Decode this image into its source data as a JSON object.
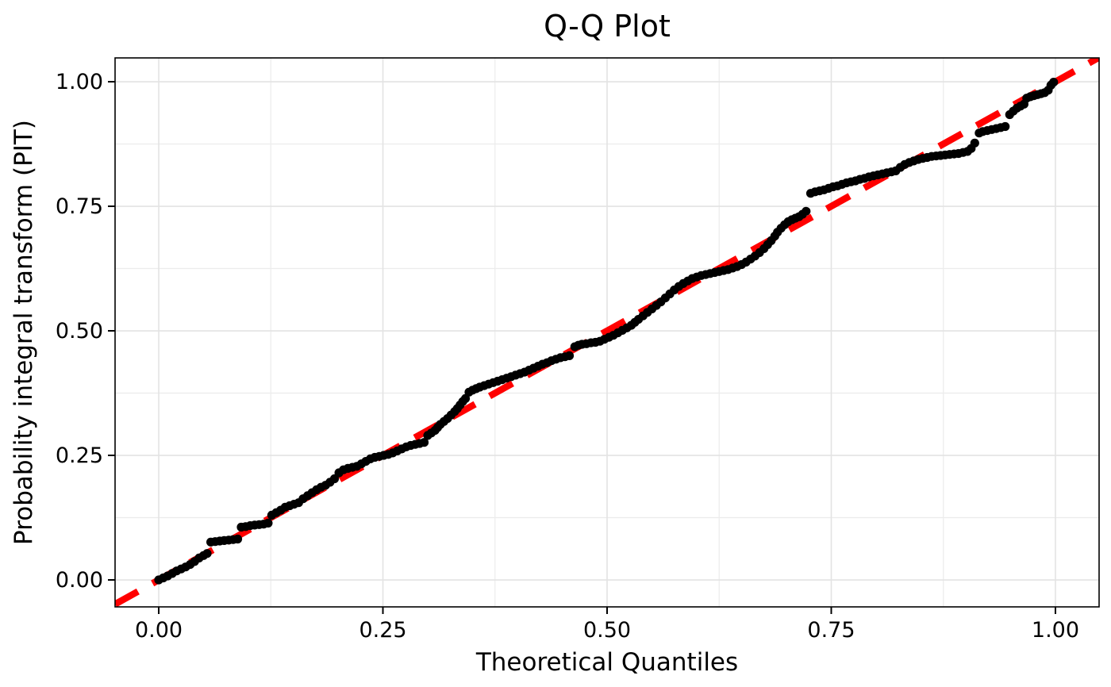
{
  "page": {
    "background": "#FFFFFF"
  },
  "chart_data": {
    "type": "scatter",
    "title": "Q-Q Plot",
    "xlabel": "Theoretical Quantiles",
    "ylabel": "Probability integral transform (PIT)",
    "xlim": [
      -0.0487,
      1.0487
    ],
    "ylim": [
      -0.0541,
      1.0478
    ],
    "x_ticks": [
      0,
      0.25,
      0.5,
      0.75,
      1.0
    ],
    "x_tick_labels": [
      "0.00",
      "0.25",
      "0.50",
      "0.75",
      "1.00"
    ],
    "y_ticks": [
      0,
      0.25,
      0.5,
      0.75,
      1.0
    ],
    "y_tick_labels": [
      "0.00",
      "0.25",
      "0.50",
      "0.75",
      "1.00"
    ],
    "grid": {
      "show": true,
      "major": [
        0,
        0.25,
        0.5,
        0.75,
        1.0
      ],
      "minor": [
        0.125,
        0.375,
        0.625,
        0.875
      ]
    },
    "legend": "none",
    "reference_line": {
      "style": "dashed",
      "slope": 1,
      "intercept": 0,
      "color": "#FF0000"
    },
    "series": [
      {
        "name": "PIT points",
        "marker": "circle",
        "color": "#000000",
        "points": [
          [
            0.0,
            0.0
          ],
          [
            0.005,
            0.004
          ],
          [
            0.01,
            0.008
          ],
          [
            0.015,
            0.013
          ],
          [
            0.02,
            0.018
          ],
          [
            0.025,
            0.022
          ],
          [
            0.03,
            0.026
          ],
          [
            0.035,
            0.031
          ],
          [
            0.04,
            0.037
          ],
          [
            0.045,
            0.044
          ],
          [
            0.05,
            0.049
          ],
          [
            0.054,
            0.053
          ],
          [
            0.058,
            0.076
          ],
          [
            0.063,
            0.077
          ],
          [
            0.068,
            0.078
          ],
          [
            0.073,
            0.079
          ],
          [
            0.078,
            0.08
          ],
          [
            0.083,
            0.081
          ],
          [
            0.088,
            0.082
          ],
          [
            0.092,
            0.106
          ],
          [
            0.097,
            0.107
          ],
          [
            0.102,
            0.109
          ],
          [
            0.107,
            0.11
          ],
          [
            0.112,
            0.111
          ],
          [
            0.117,
            0.112
          ],
          [
            0.122,
            0.114
          ],
          [
            0.126,
            0.13
          ],
          [
            0.131,
            0.135
          ],
          [
            0.136,
            0.14
          ],
          [
            0.141,
            0.146
          ],
          [
            0.146,
            0.149
          ],
          [
            0.151,
            0.152
          ],
          [
            0.156,
            0.155
          ],
          [
            0.161,
            0.163
          ],
          [
            0.166,
            0.169
          ],
          [
            0.171,
            0.175
          ],
          [
            0.176,
            0.181
          ],
          [
            0.181,
            0.186
          ],
          [
            0.186,
            0.19
          ],
          [
            0.191,
            0.196
          ],
          [
            0.196,
            0.203
          ],
          [
            0.201,
            0.215
          ],
          [
            0.206,
            0.221
          ],
          [
            0.211,
            0.224
          ],
          [
            0.216,
            0.226
          ],
          [
            0.221,
            0.228
          ],
          [
            0.226,
            0.233
          ],
          [
            0.231,
            0.238
          ],
          [
            0.236,
            0.243
          ],
          [
            0.241,
            0.246
          ],
          [
            0.246,
            0.248
          ],
          [
            0.251,
            0.25
          ],
          [
            0.256,
            0.252
          ],
          [
            0.261,
            0.255
          ],
          [
            0.266,
            0.259
          ],
          [
            0.271,
            0.263
          ],
          [
            0.276,
            0.267
          ],
          [
            0.281,
            0.27
          ],
          [
            0.286,
            0.272
          ],
          [
            0.291,
            0.274
          ],
          [
            0.296,
            0.276
          ],
          [
            0.3,
            0.29
          ],
          [
            0.304,
            0.295
          ],
          [
            0.308,
            0.3
          ],
          [
            0.311,
            0.306
          ],
          [
            0.314,
            0.312
          ],
          [
            0.318,
            0.318
          ],
          [
            0.322,
            0.324
          ],
          [
            0.326,
            0.331
          ],
          [
            0.33,
            0.338
          ],
          [
            0.333,
            0.344
          ],
          [
            0.336,
            0.351
          ],
          [
            0.339,
            0.358
          ],
          [
            0.342,
            0.364
          ],
          [
            0.346,
            0.377
          ],
          [
            0.35,
            0.381
          ],
          [
            0.354,
            0.384
          ],
          [
            0.358,
            0.387
          ],
          [
            0.363,
            0.39
          ],
          [
            0.368,
            0.393
          ],
          [
            0.373,
            0.396
          ],
          [
            0.378,
            0.399
          ],
          [
            0.383,
            0.402
          ],
          [
            0.388,
            0.405
          ],
          [
            0.393,
            0.408
          ],
          [
            0.398,
            0.411
          ],
          [
            0.403,
            0.414
          ],
          [
            0.408,
            0.417
          ],
          [
            0.413,
            0.421
          ],
          [
            0.418,
            0.425
          ],
          [
            0.423,
            0.429
          ],
          [
            0.428,
            0.433
          ],
          [
            0.433,
            0.436
          ],
          [
            0.438,
            0.44
          ],
          [
            0.443,
            0.443
          ],
          [
            0.448,
            0.446
          ],
          [
            0.453,
            0.448
          ],
          [
            0.458,
            0.45
          ],
          [
            0.464,
            0.468
          ],
          [
            0.468,
            0.471
          ],
          [
            0.472,
            0.473
          ],
          [
            0.477,
            0.474
          ],
          [
            0.482,
            0.476
          ],
          [
            0.487,
            0.477
          ],
          [
            0.492,
            0.479
          ],
          [
            0.497,
            0.483
          ],
          [
            0.502,
            0.487
          ],
          [
            0.507,
            0.491
          ],
          [
            0.512,
            0.496
          ],
          [
            0.517,
            0.501
          ],
          [
            0.522,
            0.506
          ],
          [
            0.527,
            0.511
          ],
          [
            0.531,
            0.517
          ],
          [
            0.535,
            0.523
          ],
          [
            0.54,
            0.53
          ],
          [
            0.545,
            0.537
          ],
          [
            0.55,
            0.544
          ],
          [
            0.555,
            0.551
          ],
          [
            0.56,
            0.558
          ],
          [
            0.565,
            0.566
          ],
          [
            0.57,
            0.574
          ],
          [
            0.575,
            0.582
          ],
          [
            0.58,
            0.589
          ],
          [
            0.585,
            0.595
          ],
          [
            0.59,
            0.6
          ],
          [
            0.595,
            0.605
          ],
          [
            0.6,
            0.608
          ],
          [
            0.605,
            0.611
          ],
          [
            0.61,
            0.613
          ],
          [
            0.615,
            0.615
          ],
          [
            0.62,
            0.617
          ],
          [
            0.625,
            0.619
          ],
          [
            0.63,
            0.621
          ],
          [
            0.635,
            0.623
          ],
          [
            0.64,
            0.626
          ],
          [
            0.645,
            0.629
          ],
          [
            0.65,
            0.633
          ],
          [
            0.655,
            0.638
          ],
          [
            0.66,
            0.644
          ],
          [
            0.665,
            0.65
          ],
          [
            0.67,
            0.657
          ],
          [
            0.675,
            0.665
          ],
          [
            0.679,
            0.673
          ],
          [
            0.683,
            0.681
          ],
          [
            0.687,
            0.69
          ],
          [
            0.69,
            0.698
          ],
          [
            0.694,
            0.706
          ],
          [
            0.698,
            0.713
          ],
          [
            0.702,
            0.719
          ],
          [
            0.706,
            0.723
          ],
          [
            0.71,
            0.726
          ],
          [
            0.714,
            0.729
          ],
          [
            0.718,
            0.734
          ],
          [
            0.722,
            0.74
          ],
          [
            0.727,
            0.776
          ],
          [
            0.732,
            0.779
          ],
          [
            0.737,
            0.781
          ],
          [
            0.742,
            0.783
          ],
          [
            0.747,
            0.786
          ],
          [
            0.752,
            0.789
          ],
          [
            0.757,
            0.791
          ],
          [
            0.762,
            0.794
          ],
          [
            0.767,
            0.797
          ],
          [
            0.772,
            0.799
          ],
          [
            0.777,
            0.801
          ],
          [
            0.782,
            0.804
          ],
          [
            0.787,
            0.806
          ],
          [
            0.792,
            0.809
          ],
          [
            0.797,
            0.811
          ],
          [
            0.802,
            0.813
          ],
          [
            0.807,
            0.815
          ],
          [
            0.812,
            0.817
          ],
          [
            0.817,
            0.819
          ],
          [
            0.822,
            0.821
          ],
          [
            0.827,
            0.828
          ],
          [
            0.832,
            0.834
          ],
          [
            0.837,
            0.838
          ],
          [
            0.842,
            0.841
          ],
          [
            0.847,
            0.844
          ],
          [
            0.852,
            0.846
          ],
          [
            0.857,
            0.848
          ],
          [
            0.862,
            0.85
          ],
          [
            0.867,
            0.851
          ],
          [
            0.872,
            0.852
          ],
          [
            0.877,
            0.853
          ],
          [
            0.882,
            0.854
          ],
          [
            0.887,
            0.855
          ],
          [
            0.892,
            0.856
          ],
          [
            0.897,
            0.858
          ],
          [
            0.902,
            0.86
          ],
          [
            0.906,
            0.866
          ],
          [
            0.91,
            0.877
          ],
          [
            0.915,
            0.897
          ],
          [
            0.919,
            0.9
          ],
          [
            0.924,
            0.902
          ],
          [
            0.929,
            0.904
          ],
          [
            0.934,
            0.906
          ],
          [
            0.939,
            0.908
          ],
          [
            0.944,
            0.91
          ],
          [
            0.949,
            0.934
          ],
          [
            0.953,
            0.941
          ],
          [
            0.957,
            0.947
          ],
          [
            0.961,
            0.951
          ],
          [
            0.965,
            0.955
          ],
          [
            0.968,
            0.967
          ],
          [
            0.972,
            0.97
          ],
          [
            0.976,
            0.972
          ],
          [
            0.98,
            0.974
          ],
          [
            0.984,
            0.976
          ],
          [
            0.988,
            0.978
          ],
          [
            0.992,
            0.983
          ],
          [
            0.995,
            0.993
          ],
          [
            0.998,
            0.999
          ]
        ]
      }
    ]
  },
  "style": {
    "background": "#FFFFFF",
    "panel_background": "#FFFFFF",
    "panel_border": "#000000",
    "grid_major_color": "#E3E3E3",
    "grid_minor_color": "#ECECEC",
    "tick_color": "#000000",
    "text_color": "#000000",
    "point_color": "#000000",
    "reference_line_color": "#FF0000"
  }
}
